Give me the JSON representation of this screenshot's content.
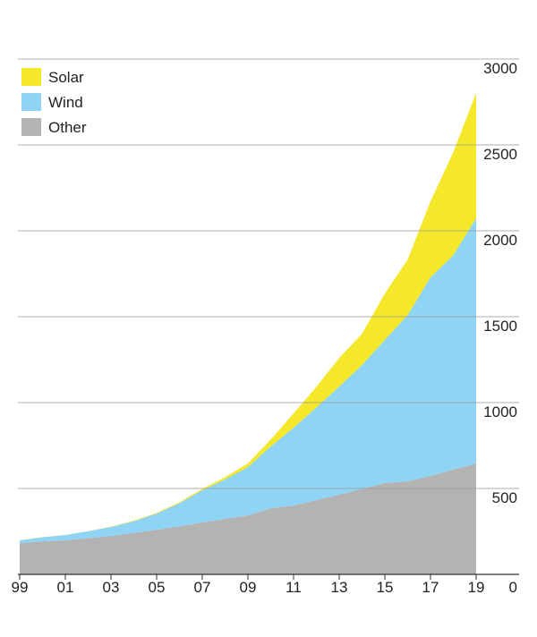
{
  "chart_data": {
    "type": "stacked-area",
    "categories": [
      "99",
      null,
      "01",
      null,
      "03",
      null,
      "05",
      null,
      "07",
      null,
      "09",
      null,
      "11",
      null,
      "13",
      null,
      "15",
      null,
      "17",
      null,
      "19"
    ],
    "series": [
      {
        "name": "Solar",
        "color": "#f5e72a",
        "values": [
          1,
          1,
          1,
          1,
          2,
          3,
          4,
          5,
          8,
          13,
          21,
          40,
          83,
          120,
          166,
          182,
          270,
          323,
          443,
          599,
          729
        ]
      },
      {
        "name": "Wind",
        "color": "#8fd3f5",
        "values": [
          16,
          24,
          31,
          40,
          52,
          70,
          94,
          135,
          188,
          230,
          281,
          360,
          453,
          540,
          630,
          721,
          834,
          968,
          1156,
          1249,
          1427
        ]
      },
      {
        "name": "Other",
        "color": "#b3b3b3",
        "values": [
          182,
          192,
          198,
          211,
          224,
          240,
          260,
          280,
          302,
          323,
          344,
          385,
          401,
          432,
          464,
          498,
          531,
          542,
          573,
          610,
          646
        ]
      }
    ],
    "ylim": [
      0,
      3000
    ],
    "yticks": [
      0,
      500,
      1000,
      1500,
      2000,
      2500,
      3000
    ],
    "grid": true,
    "legend": "top-left"
  }
}
